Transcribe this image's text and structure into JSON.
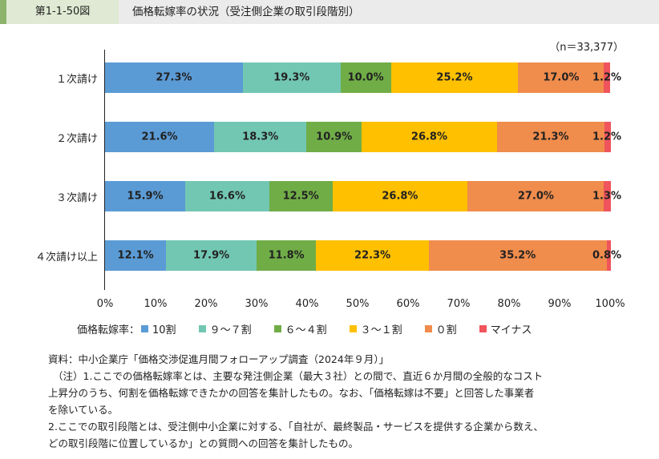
{
  "header": {
    "figure_no": "第1-1-50図",
    "title": "価格転嫁率の状況（受注側企業の取引段階別）"
  },
  "chart_data": {
    "type": "bar",
    "stacked": true,
    "orientation": "horizontal",
    "title": "価格転嫁率の状況（受注側企業の取引段階別）",
    "n_label": "（n＝33,377）",
    "categories": [
      "１次請け",
      "２次請け",
      "３次請け",
      "４次請け以上"
    ],
    "series": [
      {
        "name": "10割",
        "color": "#5b9bd5",
        "values": [
          27.3,
          21.6,
          15.9,
          12.1
        ]
      },
      {
        "name": "９～７割",
        "color": "#72c7b3",
        "values": [
          19.3,
          18.3,
          16.6,
          17.9
        ]
      },
      {
        "name": "６～４割",
        "color": "#70ad47",
        "values": [
          10.0,
          10.9,
          12.5,
          11.8
        ]
      },
      {
        "name": "３～１割",
        "color": "#ffc000",
        "values": [
          25.2,
          26.8,
          26.8,
          22.3
        ]
      },
      {
        "name": "０割",
        "color": "#f08c4c",
        "values": [
          17.0,
          21.3,
          27.0,
          35.2
        ]
      },
      {
        "name": "マイナス",
        "color": "#f0545c",
        "values": [
          1.2,
          1.2,
          1.3,
          0.8
        ]
      }
    ],
    "xlim": [
      0,
      100
    ],
    "xticks": [
      "0%",
      "10%",
      "20%",
      "30%",
      "40%",
      "50%",
      "60%",
      "70%",
      "80%",
      "90%",
      "100%"
    ],
    "legend_title": "価格転嫁率：",
    "legend_position": "bottom"
  },
  "notes": [
    "資料：中小企業庁「価格交渉促進月間フォローアップ調査（2024年９月）」",
    "（注）1.ここでの価格転嫁率とは、主要な発注側企業（最大３社）との間で、直近６か月間の全般的なコスト",
    "上昇分のうち、何割を価格転嫁できたかの回答を集計したもの。なお、「価格転嫁は不要」と回答した事業者",
    "を除いている。",
    "2.ここでの取引段階とは、受注側中小企業に対する、「自社が、最終製品・サービスを提供する企業から数え、",
    "どの取引段階に位置しているか」との質問への回答を集計したもの。"
  ]
}
